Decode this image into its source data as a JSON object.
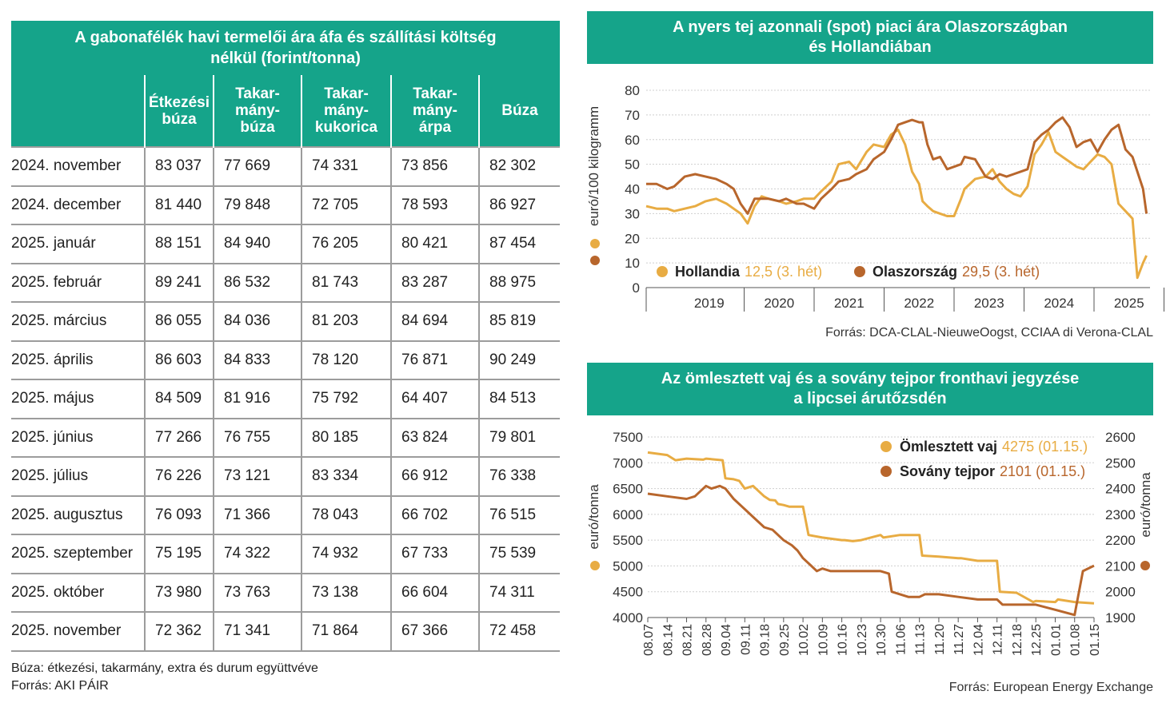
{
  "grain": {
    "title_line1": "A gabonafélék havi termelői ára áfa és szállítási költség",
    "title_line2": "nélkül (forint/tonna)",
    "columns": [
      [
        "Étkezési",
        "búza"
      ],
      [
        "Takar-",
        "mány-",
        "búza"
      ],
      [
        "Takar-",
        "mány-",
        "kukorica"
      ],
      [
        "Takar-",
        "mány-",
        "árpa"
      ],
      [
        "Búza"
      ]
    ],
    "rows": [
      {
        "period": "2024. november",
        "values": [
          "83 037",
          "77 669",
          "74 331",
          "73 856",
          "82 302"
        ]
      },
      {
        "period": "2024. december",
        "values": [
          "81 440",
          "79 848",
          "72 705",
          "78 593",
          "86 927"
        ]
      },
      {
        "period": "2025. január",
        "values": [
          "88 151",
          "84 940",
          "76 205",
          "80 421",
          "87 454"
        ]
      },
      {
        "period": "2025. február",
        "values": [
          "89 241",
          "86 532",
          "81 743",
          "83 287",
          "88 975"
        ]
      },
      {
        "period": "2025. március",
        "values": [
          "86 055",
          "84 036",
          "81 203",
          "84 694",
          "85 819"
        ]
      },
      {
        "period": "2025. április",
        "values": [
          "86 603",
          "84 833",
          "78 120",
          "76 871",
          "90 249"
        ]
      },
      {
        "period": "2025. május",
        "values": [
          "84 509",
          "81 916",
          "75 792",
          "64 407",
          "84 513"
        ]
      },
      {
        "period": "2025. június",
        "values": [
          "77 266",
          "76 755",
          "80 185",
          "63 824",
          "79 801"
        ]
      },
      {
        "period": "2025. július",
        "values": [
          "76 226",
          "73 121",
          "83 334",
          "66 912",
          "76 338"
        ]
      },
      {
        "period": "2025. augusztus",
        "values": [
          "76 093",
          "71 366",
          "78 043",
          "66 702",
          "76 515"
        ]
      },
      {
        "period": "2025. szeptember",
        "values": [
          "75 195",
          "74 322",
          "74 932",
          "67 733",
          "75 539"
        ]
      },
      {
        "period": "2025. október",
        "values": [
          "73 980",
          "73 763",
          "73 138",
          "66 604",
          "74 311"
        ]
      },
      {
        "period": "2025. november",
        "values": [
          "72 362",
          "71 341",
          "71 864",
          "67 366",
          "72 458"
        ]
      }
    ],
    "footnote": "Búza: étkezési, takarmány, extra és durum együttvéve",
    "source": "Forrás: AKI PÁIR"
  },
  "milk": {
    "title_line1": "A nyers tej azonnali (spot) piaci ára Olaszországban",
    "title_line2": "és Hollandiában",
    "source": "Forrás: DCA-CLAL-NieuweOogst, CCIAA di Verona-CLAL"
  },
  "butter": {
    "title_line1": "Az ömlesztett vaj és a sovány tejpor fronthavi jegyzése",
    "title_line2": "a lipcsei árutőzsdén",
    "source": "Forrás: European Energy Exchange"
  },
  "colors": {
    "teal": "#15a48a",
    "light": "#e8ac43",
    "dark": "#b8662c"
  },
  "chart_data": [
    {
      "type": "table",
      "title": "A gabonafélék havi termelői ára áfa és szállítási költség nélkül (forint/tonna)",
      "columns": [
        "Étkezési búza",
        "Takarmánybúza",
        "Takarmánykukorica",
        "Takarmányárpa",
        "Búza"
      ],
      "rows": [
        "2024. november",
        "2024. december",
        "2025. január",
        "2025. február",
        "2025. március",
        "2025. április",
        "2025. május",
        "2025. június",
        "2025. július",
        "2025. augusztus",
        "2025. szeptember",
        "2025. október",
        "2025. november"
      ]
    },
    {
      "type": "line",
      "title": "A nyers tej azonnali (spot) piaci ára Olaszországban és Hollandiában",
      "ylabel": "euró/100 kilogramm",
      "ylim": [
        0,
        80
      ],
      "yticks": [
        0,
        10,
        20,
        30,
        40,
        50,
        60,
        70,
        80
      ],
      "xlim": [
        2018.6,
        2025.8
      ],
      "xlabels": [
        "2019",
        "2020",
        "2021",
        "2022",
        "2023",
        "2024",
        "2025"
      ],
      "legend": "bottom",
      "series": [
        {
          "name": "Hollandia",
          "label_value": "12,5 (3. hét)",
          "color": "#e8ac43",
          "x": [
            2018.6,
            2018.75,
            2018.9,
            2019.0,
            2019.15,
            2019.3,
            2019.45,
            2019.6,
            2019.75,
            2019.85,
            2019.95,
            2020.05,
            2020.15,
            2020.25,
            2020.35,
            2020.5,
            2020.6,
            2020.75,
            2020.85,
            2021.0,
            2021.1,
            2021.25,
            2021.35,
            2021.5,
            2021.6,
            2021.75,
            2021.85,
            2022.0,
            2022.1,
            2022.2,
            2022.3,
            2022.4,
            2022.5,
            2022.55,
            2022.62,
            2022.7,
            2022.8,
            2022.9,
            2023.0,
            2023.1,
            2023.15,
            2023.3,
            2023.45,
            2023.55,
            2023.65,
            2023.75,
            2023.85,
            2023.95,
            2024.05,
            2024.15,
            2024.25,
            2024.35,
            2024.45,
            2024.55,
            2024.65,
            2024.75,
            2024.85,
            2024.95,
            2025.05,
            2025.15,
            2025.25,
            2025.35,
            2025.45,
            2025.55,
            2025.62,
            2025.7,
            2025.75
          ],
          "values": [
            33,
            32,
            32,
            31,
            32,
            33,
            35,
            36,
            34,
            32,
            30,
            26,
            33,
            37,
            36,
            35,
            34,
            35,
            36,
            36,
            39,
            43,
            50,
            51,
            48,
            55,
            58,
            57,
            62,
            64,
            58,
            47,
            42,
            35,
            33,
            31,
            30,
            29,
            29,
            36,
            40,
            44,
            45,
            48,
            43,
            40,
            38,
            37,
            41,
            54,
            58,
            63,
            55,
            53,
            51,
            49,
            48,
            51,
            54,
            53,
            50,
            34,
            31,
            28,
            4,
            10,
            13
          ]
        },
        {
          "name": "Olaszország",
          "label_value": "29,5 (3. hét)",
          "color": "#b8662c",
          "x": [
            2018.6,
            2018.75,
            2018.9,
            2019.0,
            2019.15,
            2019.3,
            2019.45,
            2019.6,
            2019.75,
            2019.85,
            2019.95,
            2020.05,
            2020.15,
            2020.25,
            2020.35,
            2020.5,
            2020.6,
            2020.75,
            2020.85,
            2021.0,
            2021.1,
            2021.25,
            2021.35,
            2021.5,
            2021.6,
            2021.75,
            2021.85,
            2022.0,
            2022.1,
            2022.2,
            2022.3,
            2022.4,
            2022.5,
            2022.55,
            2022.62,
            2022.7,
            2022.8,
            2022.9,
            2023.0,
            2023.1,
            2023.15,
            2023.3,
            2023.45,
            2023.55,
            2023.65,
            2023.75,
            2023.85,
            2023.95,
            2024.05,
            2024.15,
            2024.25,
            2024.35,
            2024.45,
            2024.55,
            2024.65,
            2024.75,
            2024.85,
            2024.95,
            2025.05,
            2025.15,
            2025.25,
            2025.35,
            2025.45,
            2025.55,
            2025.62,
            2025.7,
            2025.75
          ],
          "values": [
            42,
            42,
            40,
            41,
            45,
            46,
            45,
            44,
            42,
            40,
            34,
            30,
            36,
            36,
            36,
            35,
            36,
            34,
            34,
            32,
            36,
            40,
            43,
            44,
            46,
            48,
            52,
            55,
            60,
            66,
            67,
            68,
            67,
            67,
            58,
            52,
            53,
            48,
            49,
            50,
            53,
            52,
            45,
            44,
            46,
            45,
            46,
            47,
            48,
            59,
            62,
            64,
            67,
            69,
            65,
            57,
            59,
            60,
            55,
            60,
            64,
            66,
            56,
            53,
            47,
            40,
            30
          ]
        }
      ]
    },
    {
      "type": "line",
      "title": "Az ömlesztett vaj és a sovány tejpor fronthavi jegyzése a lipcsei árutőzsdén",
      "ylabel": "euró/tonna",
      "ylim": [
        4000,
        7500
      ],
      "yticks": [
        4000,
        4500,
        5000,
        5500,
        6000,
        6500,
        7000,
        7500
      ],
      "y2label": "euró/tonna",
      "y2lim": [
        1900,
        2600
      ],
      "y2ticks": [
        1900,
        2000,
        2100,
        2200,
        2300,
        2400,
        2500,
        2600
      ],
      "xlim": [
        0,
        161
      ],
      "xlabels": [
        "08.07",
        "08.14",
        "08.21",
        "08.28",
        "09.04",
        "09.11",
        "09.18",
        "09.25",
        "10.02",
        "10.09",
        "10.16",
        "10.23",
        "10.30",
        "11.06",
        "11.13",
        "11.20",
        "11.27",
        "12.04",
        "12.11",
        "12.18",
        "12.25",
        "01.01",
        "01.08",
        "01.15"
      ],
      "legend": "top-right",
      "series": [
        {
          "name": "Ömlesztett vaj",
          "label_value": "4275 (01.15.)",
          "color": "#e8ac43",
          "axis": "left",
          "x": [
            0,
            7,
            10,
            14,
            20,
            21,
            27,
            28,
            31,
            33,
            35,
            38,
            40,
            42,
            44,
            46,
            47,
            49,
            51,
            56,
            58,
            63,
            70,
            71,
            74,
            77,
            84,
            85,
            91,
            98,
            99,
            105,
            112,
            113,
            119,
            126,
            127,
            133,
            139,
            140,
            147,
            148,
            154,
            161
          ],
          "values": [
            7200,
            7150,
            7050,
            7080,
            7060,
            7080,
            7050,
            6700,
            6680,
            6650,
            6500,
            6550,
            6450,
            6350,
            6280,
            6270,
            6200,
            6180,
            6150,
            6150,
            5600,
            5550,
            5500,
            5500,
            5480,
            5500,
            5600,
            5550,
            5600,
            5600,
            5200,
            5180,
            5150,
            5150,
            5100,
            5100,
            4500,
            4480,
            4300,
            4320,
            4300,
            4350,
            4300,
            4275
          ]
        },
        {
          "name": "Sovány tejpor",
          "label_value": "2101 (01.15.)",
          "color": "#b8662c",
          "axis": "right",
          "x": [
            0,
            7,
            14,
            17,
            21,
            23,
            26,
            28,
            31,
            35,
            38,
            42,
            45,
            49,
            52,
            54,
            56,
            59,
            61,
            63,
            66,
            70,
            77,
            84,
            87,
            88,
            91,
            94,
            98,
            100,
            105,
            112,
            119,
            126,
            128,
            133,
            140,
            147,
            154,
            157,
            161
          ],
          "values": [
            2380,
            2370,
            2360,
            2370,
            2410,
            2400,
            2410,
            2400,
            2360,
            2320,
            2290,
            2250,
            2240,
            2200,
            2180,
            2160,
            2130,
            2100,
            2080,
            2090,
            2080,
            2080,
            2080,
            2080,
            2070,
            2000,
            1990,
            1980,
            1980,
            1990,
            1990,
            1980,
            1970,
            1970,
            1950,
            1950,
            1950,
            1930,
            1910,
            2080,
            2101
          ]
        }
      ]
    }
  ]
}
